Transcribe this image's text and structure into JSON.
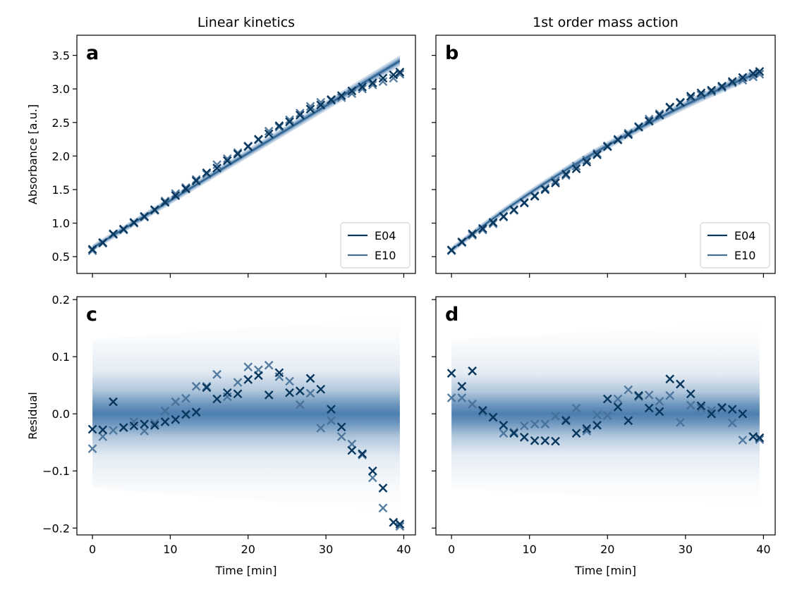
{
  "colors": {
    "E04": "#08375e",
    "E10": "#456f97",
    "band": "#1f5f9b",
    "axis": "#000000"
  },
  "chart_data": [
    {
      "type": "line",
      "panel_label": "a",
      "title": "Linear kinetics",
      "xlabel": "",
      "ylabel": "Absorbance [a.u.]",
      "xlim": [
        -2,
        41.5
      ],
      "ylim": [
        0.25,
        3.8
      ],
      "xticks": [
        0,
        10,
        20,
        30,
        40
      ],
      "yticks": [
        0.5,
        1.0,
        1.5,
        2.0,
        2.5,
        3.0,
        3.5
      ],
      "ytick_labels": [
        "0.5",
        "1.0",
        "1.5",
        "2.0",
        "2.5",
        "3.0",
        "3.5"
      ],
      "legend": {
        "placement": "bottom-right",
        "entries": [
          "E04",
          "E10"
        ]
      },
      "band": {
        "x": [
          0,
          39.5
        ],
        "center": [
          0.63,
          3.42
        ],
        "half_width": [
          0.05,
          0.08
        ]
      },
      "series": [
        {
          "name": "E04",
          "x": [
            0,
            1.33,
            2.67,
            4.0,
            5.33,
            6.67,
            8.0,
            9.33,
            10.67,
            12.0,
            13.33,
            14.67,
            16.0,
            17.33,
            18.67,
            20.0,
            21.33,
            22.67,
            24.0,
            25.33,
            26.67,
            28.0,
            29.33,
            30.67,
            32.0,
            33.33,
            34.67,
            36.0,
            37.33,
            38.67,
            39.5
          ],
          "y": [
            0.61,
            0.71,
            0.84,
            0.91,
            1.01,
            1.1,
            1.2,
            1.31,
            1.41,
            1.51,
            1.63,
            1.75,
            1.82,
            1.93,
            2.03,
            2.14,
            2.25,
            2.33,
            2.45,
            2.51,
            2.61,
            2.7,
            2.76,
            2.84,
            2.9,
            2.97,
            3.03,
            3.09,
            3.16,
            3.21,
            3.25
          ]
        },
        {
          "name": "E10",
          "x": [
            0,
            1.33,
            2.67,
            4.0,
            5.33,
            6.67,
            8.0,
            9.33,
            10.67,
            12.0,
            13.33,
            14.67,
            16.0,
            17.33,
            18.67,
            20.0,
            21.33,
            22.67,
            24.0,
            25.33,
            26.67,
            28.0,
            29.33,
            30.67,
            32.0,
            33.33,
            34.67,
            36.0,
            37.33,
            38.67,
            39.5
          ],
          "y": [
            0.59,
            0.7,
            0.83,
            0.9,
            1.0,
            1.09,
            1.19,
            1.33,
            1.44,
            1.53,
            1.65,
            1.73,
            1.87,
            1.96,
            2.05,
            2.15,
            2.24,
            2.37,
            2.43,
            2.54,
            2.64,
            2.74,
            2.8,
            2.83,
            2.87,
            2.93,
            3.0,
            3.06,
            3.11,
            3.16,
            3.22
          ]
        }
      ]
    },
    {
      "type": "line",
      "panel_label": "b",
      "title": "1st order mass action",
      "xlabel": "",
      "ylabel": "",
      "xlim": [
        -2,
        41.5
      ],
      "ylim": [
        0.25,
        3.8
      ],
      "xticks": [
        0,
        10,
        20,
        30,
        40
      ],
      "yticks": [
        0.5,
        1.0,
        1.5,
        2.0,
        2.5,
        3.0,
        3.5
      ],
      "legend": {
        "placement": "bottom-right",
        "entries": [
          "E04",
          "E10"
        ]
      },
      "band": {
        "x": [
          0,
          39.5
        ],
        "curve": "1st-order",
        "start": 0.6,
        "end": 3.25,
        "half_width": [
          0.05,
          0.07
        ]
      },
      "series": [
        {
          "name": "E04",
          "x": [
            0,
            1.33,
            2.67,
            4.0,
            5.33,
            6.67,
            8.0,
            9.33,
            10.67,
            12.0,
            13.33,
            14.67,
            16.0,
            17.33,
            18.67,
            20.0,
            21.33,
            22.67,
            24.0,
            25.33,
            26.67,
            28.0,
            29.33,
            30.67,
            32.0,
            33.33,
            34.67,
            36.0,
            37.33,
            38.67,
            39.5
          ],
          "y": [
            0.6,
            0.72,
            0.84,
            0.92,
            1.01,
            1.1,
            1.2,
            1.3,
            1.4,
            1.5,
            1.6,
            1.73,
            1.81,
            1.91,
            2.02,
            2.14,
            2.24,
            2.32,
            2.43,
            2.52,
            2.61,
            2.73,
            2.8,
            2.89,
            2.94,
            2.98,
            3.04,
            3.11,
            3.17,
            3.23,
            3.26
          ]
        },
        {
          "name": "E10",
          "x": [
            0,
            1.33,
            2.67,
            4.0,
            5.33,
            6.67,
            8.0,
            9.33,
            10.67,
            12.0,
            13.33,
            14.67,
            16.0,
            17.33,
            18.67,
            20.0,
            21.33,
            22.67,
            24.0,
            25.33,
            26.67,
            28.0,
            29.33,
            30.67,
            32.0,
            33.33,
            34.67,
            36.0,
            37.33,
            38.67,
            39.5
          ],
          "y": [
            0.59,
            0.71,
            0.82,
            0.9,
            0.99,
            1.09,
            1.19,
            1.31,
            1.41,
            1.52,
            1.63,
            1.71,
            1.85,
            1.94,
            2.04,
            2.15,
            2.25,
            2.34,
            2.44,
            2.55,
            2.63,
            2.72,
            2.79,
            2.86,
            2.91,
            2.96,
            3.02,
            3.09,
            3.13,
            3.18,
            3.22
          ]
        }
      ]
    },
    {
      "type": "scatter",
      "panel_label": "c",
      "title": "",
      "xlabel": "Time [min]",
      "ylabel": "Residual",
      "xlim": [
        -2,
        41.5
      ],
      "ylim": [
        -0.212,
        0.205
      ],
      "xticks": [
        0,
        10,
        20,
        30,
        40
      ],
      "yticks": [
        -0.2,
        -0.1,
        0.0,
        0.1,
        0.2
      ],
      "ytick_labels": [
        "−0.2",
        "−0.1",
        "0.0",
        "0.1",
        "0.2"
      ],
      "band": {
        "x": [
          0,
          39.5
        ],
        "center": 0.0,
        "half_width": [
          0.13,
          0.17
        ]
      },
      "series": [
        {
          "name": "E04",
          "x": [
            0,
            1.33,
            2.67,
            4.0,
            5.33,
            6.67,
            8.0,
            9.33,
            10.67,
            12.0,
            13.33,
            14.67,
            16.0,
            17.33,
            18.67,
            20.0,
            21.33,
            22.67,
            24.0,
            25.33,
            26.67,
            28.0,
            29.33,
            30.67,
            32.0,
            33.33,
            34.67,
            36.0,
            37.33,
            38.67,
            39.5
          ],
          "y": [
            -0.027,
            -0.028,
            0.021,
            -0.024,
            -0.021,
            -0.018,
            -0.02,
            -0.014,
            -0.01,
            -0.001,
            0.003,
            0.046,
            0.026,
            0.037,
            0.035,
            0.06,
            0.067,
            0.033,
            0.072,
            0.037,
            0.04,
            0.062,
            0.043,
            0.008,
            -0.023,
            -0.064,
            -0.07,
            -0.1,
            -0.13,
            -0.19,
            -0.193
          ]
        },
        {
          "name": "E10",
          "x": [
            0,
            1.33,
            2.67,
            4.0,
            5.33,
            6.67,
            8.0,
            9.33,
            10.67,
            12.0,
            13.33,
            14.67,
            16.0,
            17.33,
            18.67,
            20.0,
            21.33,
            22.67,
            24.0,
            25.33,
            26.67,
            28.0,
            29.33,
            30.67,
            32.0,
            33.33,
            34.67,
            36.0,
            37.33,
            38.67,
            39.5
          ],
          "y": [
            -0.061,
            -0.04,
            -0.029,
            -0.024,
            -0.014,
            -0.03,
            -0.016,
            0.005,
            0.021,
            0.027,
            0.048,
            0.048,
            0.069,
            0.03,
            0.055,
            0.082,
            0.077,
            0.085,
            0.065,
            0.057,
            0.016,
            0.036,
            -0.025,
            -0.012,
            -0.04,
            -0.053,
            -0.072,
            -0.112,
            -0.165,
            -0.19,
            -0.197
          ]
        }
      ]
    },
    {
      "type": "scatter",
      "panel_label": "d",
      "title": "",
      "xlabel": "Time [min]",
      "ylabel": "",
      "xlim": [
        -2,
        41.5
      ],
      "ylim": [
        -0.212,
        0.205
      ],
      "xticks": [
        0,
        10,
        20,
        30,
        40
      ],
      "yticks": [
        -0.2,
        -0.1,
        0.0,
        0.1,
        0.2
      ],
      "band": {
        "x": [
          0,
          39.5
        ],
        "center": 0.0,
        "half_width": [
          0.13,
          0.16
        ]
      },
      "series": [
        {
          "name": "E04",
          "x": [
            0,
            1.33,
            2.67,
            4.0,
            5.33,
            6.67,
            8.0,
            9.33,
            10.67,
            12.0,
            13.33,
            14.67,
            16.0,
            17.33,
            18.67,
            20.0,
            21.33,
            22.67,
            24.0,
            25.33,
            26.67,
            28.0,
            29.33,
            30.67,
            32.0,
            33.33,
            34.67,
            36.0,
            37.33,
            38.67,
            39.5
          ],
          "y": [
            0.071,
            0.048,
            0.075,
            0.006,
            -0.006,
            -0.02,
            -0.034,
            -0.041,
            -0.047,
            -0.047,
            -0.048,
            -0.012,
            -0.034,
            -0.026,
            -0.02,
            0.026,
            0.012,
            -0.012,
            0.032,
            0.01,
            0.004,
            0.061,
            0.052,
            0.035,
            0.014,
            0.0,
            0.011,
            0.008,
            0.0,
            -0.04,
            -0.042
          ]
        },
        {
          "name": "E10",
          "x": [
            0,
            1.33,
            2.67,
            4.0,
            5.33,
            6.67,
            8.0,
            9.33,
            10.67,
            12.0,
            13.33,
            14.67,
            16.0,
            17.33,
            18.67,
            20.0,
            21.33,
            22.67,
            24.0,
            25.33,
            26.67,
            28.0,
            29.33,
            30.67,
            32.0,
            33.33,
            34.67,
            36.0,
            37.33,
            38.67,
            39.5
          ],
          "y": [
            0.028,
            0.028,
            0.017,
            0.003,
            -0.006,
            -0.034,
            -0.032,
            -0.021,
            -0.018,
            -0.018,
            -0.004,
            -0.01,
            0.01,
            -0.03,
            -0.002,
            -0.003,
            0.026,
            0.042,
            0.03,
            0.033,
            0.022,
            0.032,
            -0.015,
            0.015,
            0.01,
            0.006,
            0.01,
            -0.016,
            -0.046,
            -0.04,
            -0.045
          ]
        }
      ]
    }
  ]
}
